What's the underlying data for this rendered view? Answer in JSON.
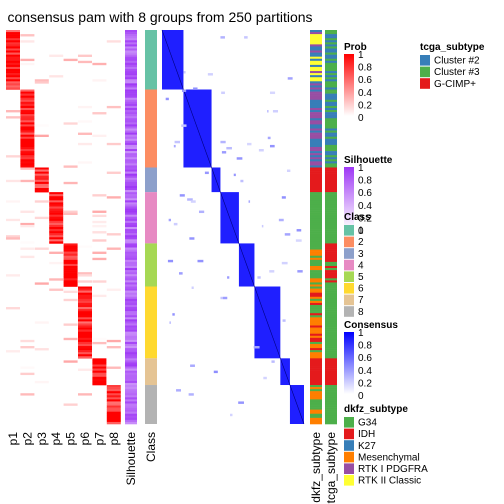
{
  "chart_data": {
    "type": "heatmap",
    "title": "consensus pam with 8 groups from 250 partitions",
    "columns": [
      "p1",
      "p2",
      "p3",
      "p4",
      "p5",
      "p6",
      "p7",
      "p8",
      "Silhouette",
      "Class",
      "dkfz_subtype",
      "tcga_subtype"
    ],
    "class_groups": [
      {
        "class": "1",
        "color": "#66C2A5",
        "prob_col": 0,
        "n": 29
      },
      {
        "class": "2",
        "color": "#FC8D62",
        "prob_col": 1,
        "n": 38
      },
      {
        "class": "3",
        "color": "#8DA0CB",
        "prob_col": 2,
        "n": 12
      },
      {
        "class": "4",
        "color": "#E78AC3",
        "prob_col": 3,
        "n": 25
      },
      {
        "class": "5",
        "color": "#A6D854",
        "prob_col": 4,
        "n": 21
      },
      {
        "class": "6",
        "color": "#FFD92F",
        "prob_col": 5,
        "n": 35
      },
      {
        "class": "7",
        "color": "#E5C494",
        "prob_col": 6,
        "n": 13
      },
      {
        "class": "8",
        "color": "#B3B3B3",
        "prob_col": 7,
        "n": 19
      }
    ],
    "legends": [
      {
        "title": "Prob",
        "type": "gradient",
        "colors": [
          "#ffffff",
          "#ff0000"
        ],
        "ticks": [
          "1",
          "0.8",
          "0.6",
          "0.4",
          "0.2",
          "0"
        ]
      },
      {
        "title": "Silhouette",
        "type": "gradient",
        "colors": [
          "#ffffff",
          "#9e37f5"
        ],
        "ticks": [
          "1",
          "0.8",
          "0.6",
          "0.4",
          "0.2",
          "0"
        ]
      },
      {
        "title": "Class",
        "type": "discrete",
        "entries": [
          {
            "label": "1",
            "color": "#66C2A5"
          },
          {
            "label": "2",
            "color": "#FC8D62"
          },
          {
            "label": "3",
            "color": "#8DA0CB"
          },
          {
            "label": "4",
            "color": "#E78AC3"
          },
          {
            "label": "5",
            "color": "#A6D854"
          },
          {
            "label": "6",
            "color": "#FFD92F"
          },
          {
            "label": "7",
            "color": "#E5C494"
          },
          {
            "label": "8",
            "color": "#B3B3B3"
          }
        ]
      },
      {
        "title": "Consensus",
        "type": "gradient",
        "colors": [
          "#ffffff",
          "#0000ff"
        ],
        "ticks": [
          "1",
          "0.8",
          "0.6",
          "0.4",
          "0.2",
          "0"
        ]
      },
      {
        "title": "dkfz_subtype",
        "type": "discrete",
        "entries": [
          {
            "label": "G34",
            "color": "#4DAF4A"
          },
          {
            "label": "IDH",
            "color": "#E41A1C"
          },
          {
            "label": "K27",
            "color": "#377EB8"
          },
          {
            "label": "Mesenchymal",
            "color": "#FF7F00"
          },
          {
            "label": "RTK I PDGFRA",
            "color": "#984EA3"
          },
          {
            "label": "RTK II Classic",
            "color": "#FFFF33"
          }
        ]
      },
      {
        "title": "tcga_subtype",
        "type": "discrete",
        "entries": [
          {
            "label": "Cluster #2",
            "color": "#377EB8"
          },
          {
            "label": "Cluster #3",
            "color": "#4DAF4A"
          },
          {
            "label": "G-CIMP+",
            "color": "#E41A1C"
          }
        ]
      }
    ]
  }
}
